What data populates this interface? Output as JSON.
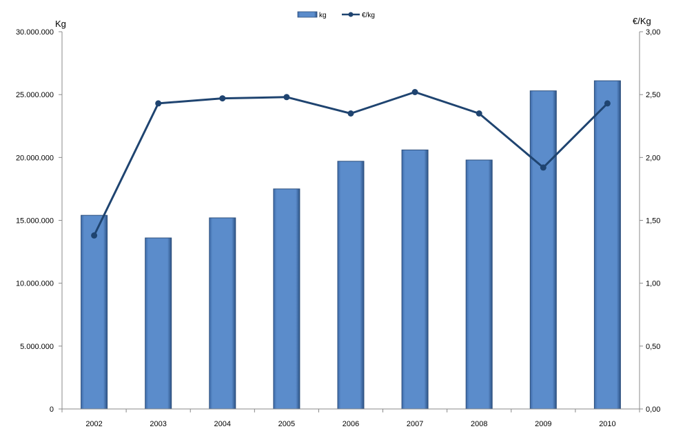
{
  "chart_data": {
    "type": "bar",
    "categories": [
      "2002",
      "2003",
      "2004",
      "2005",
      "2006",
      "2007",
      "2008",
      "2009",
      "2010"
    ],
    "series": [
      {
        "name": "kg",
        "type": "bar",
        "axis": "left",
        "color": "#5B8CCB",
        "values": [
          15400000,
          13600000,
          15200000,
          17500000,
          19700000,
          20600000,
          19800000,
          25300000,
          26100000
        ]
      },
      {
        "name": "€/kg",
        "type": "line",
        "axis": "right",
        "color": "#1F4470",
        "values": [
          1.38,
          2.43,
          2.47,
          2.48,
          2.35,
          2.52,
          2.35,
          1.92,
          2.43
        ]
      }
    ],
    "ylabel_left": "Kg",
    "ylabel_right": "€/Kg",
    "ylim_left": [
      0,
      30000000
    ],
    "ylim_right": [
      0,
      3.0
    ],
    "yticks_left": [
      "0",
      "5.000.000",
      "10.000.000",
      "15.000.000",
      "20.000.000",
      "25.000.000",
      "30.000.000"
    ],
    "yticks_right": [
      "0,00",
      "0,50",
      "1,00",
      "1,50",
      "2,00",
      "2,50",
      "3,00"
    ],
    "grid": false,
    "legend_position": "top-center"
  }
}
